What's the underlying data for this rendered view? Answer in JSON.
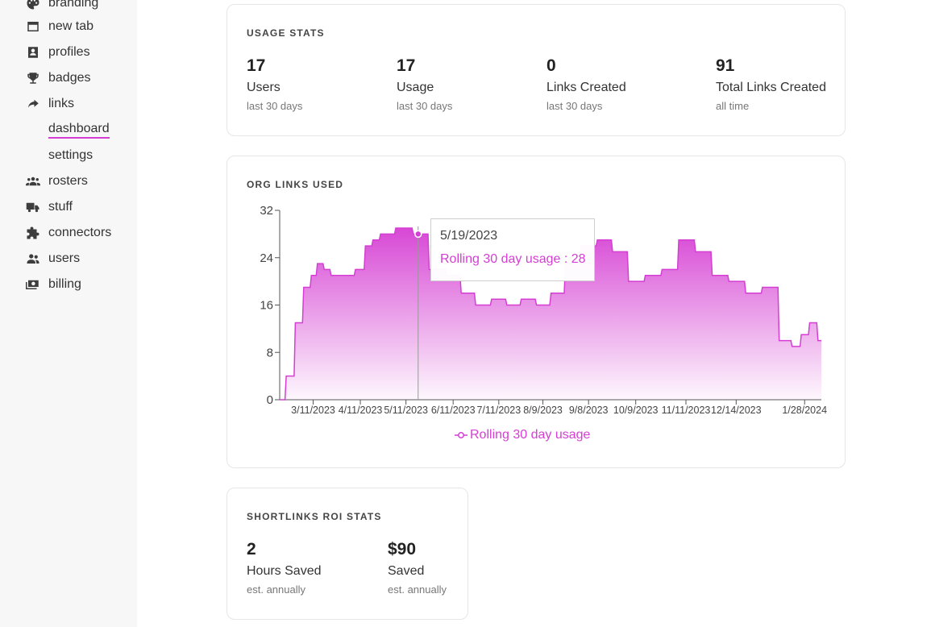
{
  "sidebar": {
    "items": [
      {
        "label": "branding",
        "icon": "palette-icon"
      },
      {
        "label": "new tab",
        "icon": "window-icon"
      },
      {
        "label": "profiles",
        "icon": "profile-card-icon"
      },
      {
        "label": "badges",
        "icon": "trophy-icon"
      },
      {
        "label": "links",
        "icon": "share-arrow-icon"
      },
      {
        "label": "rosters",
        "icon": "group-icon"
      },
      {
        "label": "stuff",
        "icon": "truck-icon"
      },
      {
        "label": "connectors",
        "icon": "puzzle-icon"
      },
      {
        "label": "users",
        "icon": "users-icon"
      },
      {
        "label": "billing",
        "icon": "money-icon"
      }
    ],
    "sub_items": [
      {
        "label": "dashboard",
        "active": true
      },
      {
        "label": "settings",
        "active": false
      }
    ],
    "active_color": "#d53ed3"
  },
  "usage_stats": {
    "title": "USAGE STATS",
    "stats": [
      {
        "value": "17",
        "label": "Users",
        "sub": "last 30 days"
      },
      {
        "value": "17",
        "label": "Usage",
        "sub": "last 30 days"
      },
      {
        "value": "0",
        "label": "Links Created",
        "sub": "last 30 days"
      },
      {
        "value": "91",
        "label": "Total Links Created",
        "sub": "all time"
      }
    ]
  },
  "org_links": {
    "title": "ORG LINKS USED",
    "tooltip": {
      "date": "5/19/2023",
      "text": "Rolling 30 day usage : 28"
    },
    "legend": "Rolling 30 day usage"
  },
  "chart_data": {
    "type": "area",
    "title": "ORG LINKS USED",
    "xlabel": "",
    "ylabel": "",
    "ylim": [
      0,
      32
    ],
    "yticks": [
      "0",
      "8",
      "16",
      "24",
      "32"
    ],
    "xticks": [
      "3/11/2023",
      "4/11/2023",
      "5/11/2023",
      "6/11/2023",
      "7/11/2023",
      "8/9/2023",
      "9/8/2023",
      "10/9/2023",
      "11/11/2023",
      "12/14/2023",
      "1/28/2024"
    ],
    "color": "#d53ed3",
    "series": [
      {
        "name": "Rolling 30 day usage",
        "x": [
          "2/17/2023",
          "2/24/2023",
          "3/1/2023",
          "3/7/2023",
          "3/11/2023",
          "3/15/2023",
          "3/20/2023",
          "3/24/2023",
          "3/29/2023",
          "4/3/2023",
          "4/11/2023",
          "4/16/2023",
          "4/21/2023",
          "4/26/2023",
          "5/1/2023",
          "5/6/2023",
          "5/11/2023",
          "5/19/2023",
          "6/1/2023",
          "6/11/2023",
          "6/20/2023",
          "6/30/2023",
          "7/11/2023",
          "7/20/2023",
          "7/30/2023",
          "8/9/2023",
          "8/18/2023",
          "8/28/2023",
          "9/8/2023",
          "9/18/2023",
          "9/28/2023",
          "10/9/2023",
          "10/20/2023",
          "10/31/2023",
          "11/11/2023",
          "11/22/2023",
          "12/3/2023",
          "12/14/2023",
          "12/25/2023",
          "1/5/2024",
          "1/16/2024",
          "1/22/2024",
          "1/28/2024",
          "2/2/2024",
          "2/8/2024"
        ],
        "values": [
          0,
          4,
          13,
          19,
          21,
          23,
          22,
          21,
          21,
          21,
          22,
          26,
          27,
          28,
          28,
          29,
          29,
          28,
          22,
          21,
          18,
          16,
          17,
          16,
          17,
          16,
          18,
          23,
          26,
          27,
          25,
          20,
          21,
          22,
          27,
          25,
          21,
          20,
          18,
          19,
          10,
          9,
          11,
          13,
          10
        ]
      }
    ]
  },
  "roi_stats": {
    "title": "SHORTLINKS ROI STATS",
    "stats": [
      {
        "value": "2",
        "label": "Hours Saved",
        "sub": "est. annually"
      },
      {
        "value": "$90",
        "label": "Saved",
        "sub": "est. annually"
      }
    ]
  }
}
